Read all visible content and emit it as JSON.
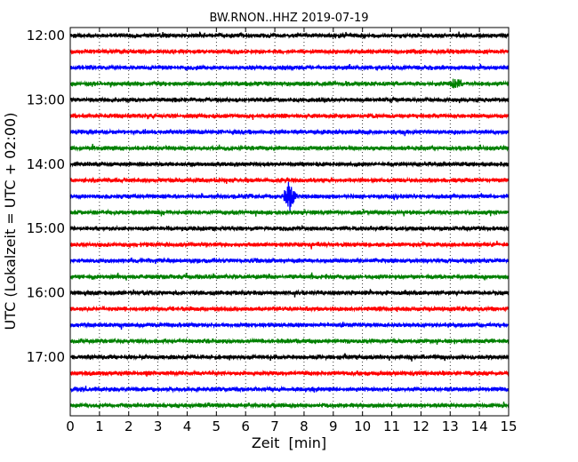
{
  "chart_data": {
    "type": "line",
    "title": "BW.RNON..HHZ 2019-07-19",
    "xlabel": "Zeit  [min]",
    "ylabel": "UTC (Lokalzeit = UTC + 02:00)",
    "xlim": [
      0,
      15
    ],
    "x_ticks": [
      "0",
      "1",
      "2",
      "3",
      "4",
      "5",
      "6",
      "7",
      "8",
      "9",
      "10",
      "11",
      "12",
      "13",
      "14",
      "15"
    ],
    "y_tick_labels": [
      "12:00",
      "13:00",
      "14:00",
      "15:00",
      "16:00",
      "17:00"
    ],
    "trace_start_times": [
      "12:00",
      "12:15",
      "12:30",
      "12:45",
      "13:00",
      "13:15",
      "13:30",
      "13:45",
      "14:00",
      "14:15",
      "14:30",
      "14:45",
      "15:00",
      "15:15",
      "15:30",
      "15:45",
      "16:00",
      "16:15",
      "16:30",
      "16:45",
      "17:00",
      "17:15",
      "17:30",
      "17:45"
    ],
    "trace_colors": [
      "#000000",
      "#ff0000",
      "#0000ff",
      "#008000"
    ],
    "vertical_grid": "dotted",
    "notable_events": [
      {
        "trace": "14:30",
        "x_min": 7.5,
        "description": "large spike"
      },
      {
        "trace": "12:45",
        "x_min": 13.2,
        "description": "burst"
      }
    ]
  }
}
